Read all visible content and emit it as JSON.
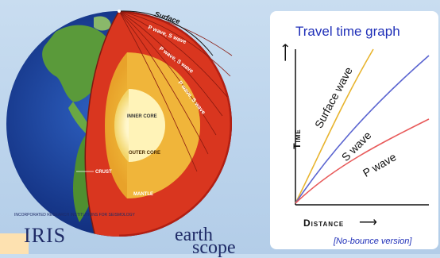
{
  "graph": {
    "title": "Travel time graph",
    "y_axis_label": "Time",
    "x_axis_label": "Distance",
    "version_note": "[No-bounce version]",
    "curves": [
      {
        "name": "Surface wave",
        "color": "#e8b42e"
      },
      {
        "name": "S wave",
        "color": "#5a64d0"
      },
      {
        "name": "P wave",
        "color": "#e85a5a"
      }
    ]
  },
  "earth": {
    "surface_label": "Surface",
    "ray_labels": [
      "P wave, S wave",
      "P wave, S wave",
      "P wave, S wave"
    ],
    "layers": {
      "inner_core": "INNER CORE",
      "outer_core": "OUTER CORE",
      "mantle": "MANTLE",
      "crust": "CRUST"
    }
  },
  "logos": {
    "iris": "IRIS",
    "iris_tagline": "INCORPORATED RESEARCH INSTITUTIONS FOR SEISMOLOGY",
    "earthscope_line1": "earth",
    "earthscope_line2": "scope"
  }
}
